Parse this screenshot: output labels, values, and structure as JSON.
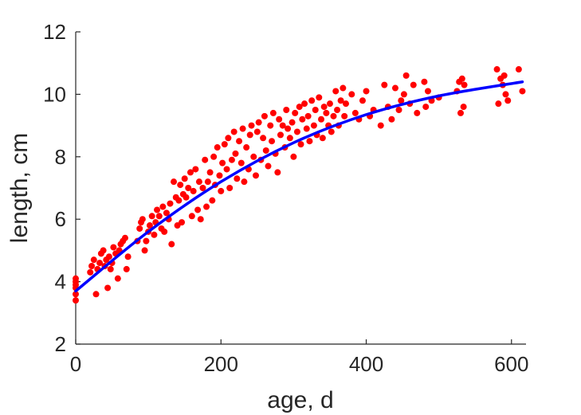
{
  "chart_data": {
    "type": "scatter",
    "title": "",
    "xlabel": "age, d",
    "ylabel": "length, cm",
    "xlim": [
      0,
      620
    ],
    "ylim": [
      2,
      12
    ],
    "x_ticks": [
      0,
      200,
      400,
      600
    ],
    "y_ticks": [
      2,
      4,
      6,
      8,
      10,
      12
    ],
    "x_tick_labels": [
      "0",
      "200",
      "400",
      "600"
    ],
    "y_tick_labels": [
      "2",
      "4",
      "6",
      "8",
      "10",
      "12"
    ],
    "grid": false,
    "legend": "none",
    "series": [
      {
        "kind": "scatter",
        "color": "#ff0000",
        "points": [
          [
            0,
            3.4
          ],
          [
            0,
            3.6
          ],
          [
            0,
            3.8
          ],
          [
            0,
            3.9
          ],
          [
            0,
            4.0
          ],
          [
            0,
            4.1
          ],
          [
            20,
            4.3
          ],
          [
            22,
            4.5
          ],
          [
            25,
            4.7
          ],
          [
            28,
            3.6
          ],
          [
            30,
            4.4
          ],
          [
            33,
            4.6
          ],
          [
            35,
            4.9
          ],
          [
            38,
            5.0
          ],
          [
            40,
            4.5
          ],
          [
            42,
            4.7
          ],
          [
            44,
            3.8
          ],
          [
            46,
            4.8
          ],
          [
            48,
            4.4
          ],
          [
            50,
            4.6
          ],
          [
            52,
            5.1
          ],
          [
            55,
            4.9
          ],
          [
            58,
            4.1
          ],
          [
            60,
            5.0
          ],
          [
            62,
            5.2
          ],
          [
            65,
            5.3
          ],
          [
            68,
            5.4
          ],
          [
            70,
            4.4
          ],
          [
            72,
            4.8
          ],
          [
            85,
            5.3
          ],
          [
            88,
            5.7
          ],
          [
            90,
            5.9
          ],
          [
            92,
            6.0
          ],
          [
            95,
            5.0
          ],
          [
            97,
            5.3
          ],
          [
            100,
            5.6
          ],
          [
            102,
            5.8
          ],
          [
            105,
            6.1
          ],
          [
            108,
            5.5
          ],
          [
            110,
            5.9
          ],
          [
            112,
            6.3
          ],
          [
            115,
            6.1
          ],
          [
            118,
            5.7
          ],
          [
            120,
            6.4
          ],
          [
            122,
            5.6
          ],
          [
            125,
            6.2
          ],
          [
            128,
            6.0
          ],
          [
            130,
            6.5
          ],
          [
            132,
            5.2
          ],
          [
            135,
            7.2
          ],
          [
            138,
            6.7
          ],
          [
            140,
            5.8
          ],
          [
            142,
            6.6
          ],
          [
            144,
            7.1
          ],
          [
            146,
            5.9
          ],
          [
            148,
            6.8
          ],
          [
            150,
            7.3
          ],
          [
            152,
            6.7
          ],
          [
            155,
            7.0
          ],
          [
            158,
            7.5
          ],
          [
            160,
            6.1
          ],
          [
            162,
            6.9
          ],
          [
            165,
            7.6
          ],
          [
            168,
            6.3
          ],
          [
            170,
            7.2
          ],
          [
            172,
            6.0
          ],
          [
            175,
            7.0
          ],
          [
            178,
            7.9
          ],
          [
            180,
            6.4
          ],
          [
            182,
            7.2
          ],
          [
            185,
            7.5
          ],
          [
            188,
            6.6
          ],
          [
            190,
            8.0
          ],
          [
            192,
            7.1
          ],
          [
            195,
            8.3
          ],
          [
            198,
            7.4
          ],
          [
            200,
            6.9
          ],
          [
            202,
            7.8
          ],
          [
            205,
            8.4
          ],
          [
            208,
            7.6
          ],
          [
            210,
            8.6
          ],
          [
            212,
            7.0
          ],
          [
            215,
            7.9
          ],
          [
            218,
            8.8
          ],
          [
            220,
            8.1
          ],
          [
            222,
            7.3
          ],
          [
            225,
            8.5
          ],
          [
            228,
            7.8
          ],
          [
            230,
            8.9
          ],
          [
            232,
            7.2
          ],
          [
            235,
            8.3
          ],
          [
            238,
            7.6
          ],
          [
            240,
            8.7
          ],
          [
            242,
            9.0
          ],
          [
            245,
            8.0
          ],
          [
            248,
            7.4
          ],
          [
            250,
            8.8
          ],
          [
            252,
            9.1
          ],
          [
            255,
            7.9
          ],
          [
            258,
            8.6
          ],
          [
            260,
            9.3
          ],
          [
            262,
            8.2
          ],
          [
            265,
            7.7
          ],
          [
            268,
            9.0
          ],
          [
            270,
            8.5
          ],
          [
            272,
            9.4
          ],
          [
            275,
            8.1
          ],
          [
            278,
            7.5
          ],
          [
            280,
            9.2
          ],
          [
            282,
            8.7
          ],
          [
            285,
            9.0
          ],
          [
            288,
            8.3
          ],
          [
            290,
            9.5
          ],
          [
            292,
            8.9
          ],
          [
            295,
            8.6
          ],
          [
            298,
            9.1
          ],
          [
            300,
            8.0
          ],
          [
            302,
            9.4
          ],
          [
            305,
            8.8
          ],
          [
            308,
            9.6
          ],
          [
            310,
            8.4
          ],
          [
            312,
            9.2
          ],
          [
            315,
            9.7
          ],
          [
            318,
            8.9
          ],
          [
            320,
            9.3
          ],
          [
            322,
            8.5
          ],
          [
            325,
            9.8
          ],
          [
            328,
            9.0
          ],
          [
            330,
            9.5
          ],
          [
            332,
            8.7
          ],
          [
            335,
            9.9
          ],
          [
            338,
            9.2
          ],
          [
            340,
            8.6
          ],
          [
            342,
            9.6
          ],
          [
            345,
            9.4
          ],
          [
            348,
            9.0
          ],
          [
            350,
            9.7
          ],
          [
            352,
            8.8
          ],
          [
            355,
            9.3
          ],
          [
            358,
            10.1
          ],
          [
            360,
            9.5
          ],
          [
            362,
            9.0
          ],
          [
            365,
            9.8
          ],
          [
            368,
            10.2
          ],
          [
            370,
            9.3
          ],
          [
            372,
            9.7
          ],
          [
            380,
            10.0
          ],
          [
            385,
            9.4
          ],
          [
            390,
            9.2
          ],
          [
            395,
            9.8
          ],
          [
            400,
            10.1
          ],
          [
            405,
            9.3
          ],
          [
            410,
            9.5
          ],
          [
            420,
            9.0
          ],
          [
            425,
            10.3
          ],
          [
            430,
            9.6
          ],
          [
            435,
            9.2
          ],
          [
            440,
            10.2
          ],
          [
            445,
            9.5
          ],
          [
            448,
            9.8
          ],
          [
            452,
            10.0
          ],
          [
            455,
            10.6
          ],
          [
            460,
            9.7
          ],
          [
            465,
            10.3
          ],
          [
            470,
            9.4
          ],
          [
            480,
            10.4
          ],
          [
            482,
            9.6
          ],
          [
            485,
            10.1
          ],
          [
            490,
            9.8
          ],
          [
            500,
            9.9
          ],
          [
            525,
            10.1
          ],
          [
            528,
            10.4
          ],
          [
            530,
            9.4
          ],
          [
            532,
            10.5
          ],
          [
            534,
            9.6
          ],
          [
            535,
            10.3
          ],
          [
            580,
            10.8
          ],
          [
            582,
            9.7
          ],
          [
            585,
            10.5
          ],
          [
            588,
            10.3
          ],
          [
            590,
            10.6
          ],
          [
            592,
            10.0
          ],
          [
            595,
            9.8
          ],
          [
            610,
            10.8
          ],
          [
            615,
            10.1
          ]
        ]
      },
      {
        "kind": "line",
        "color": "#0000ff",
        "points": [
          [
            0,
            3.7
          ],
          [
            100,
            5.6
          ],
          [
            200,
            7.2
          ],
          [
            300,
            8.45
          ],
          [
            400,
            9.35
          ],
          [
            500,
            9.95
          ],
          [
            615,
            10.4
          ]
        ]
      }
    ]
  }
}
